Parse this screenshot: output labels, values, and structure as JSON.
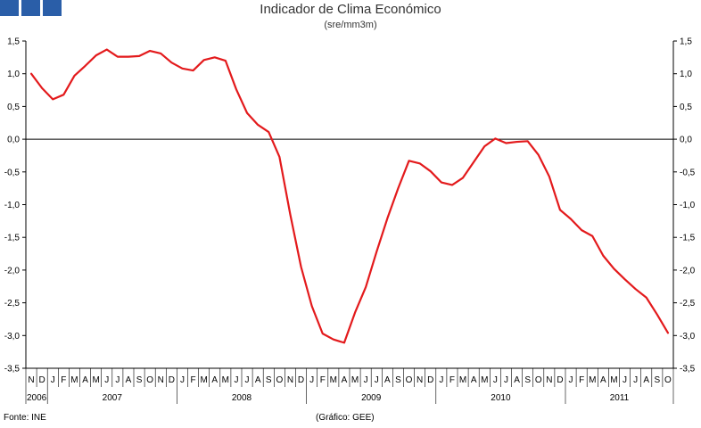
{
  "header": {
    "title": "Indicador de Clima Económico",
    "subtitle": "(sre/mm3m)"
  },
  "footer": {
    "source": "Fonte: INE",
    "credit": "(Gráfico: GEE)"
  },
  "colors": {
    "series": "#e31a1c",
    "logo": "#2a5ea8"
  },
  "chart_data": {
    "type": "line",
    "ylim": [
      -3.5,
      1.5
    ],
    "yticks": [
      1.5,
      1.0,
      0.5,
      0.0,
      -0.5,
      -1.0,
      -1.5,
      -2.0,
      -2.5,
      -3.0,
      -3.5
    ],
    "ytick_labels": [
      "1,5",
      "1,0",
      "0,5",
      "0,0",
      "-0,5",
      "-1,0",
      "-1,5",
      "-2,0",
      "-2,5",
      "-3,0",
      "-3,5"
    ],
    "grid": false,
    "categories": [
      "N",
      "D",
      "J",
      "F",
      "M",
      "A",
      "M",
      "J",
      "J",
      "A",
      "S",
      "O",
      "N",
      "D",
      "J",
      "F",
      "M",
      "A",
      "M",
      "J",
      "J",
      "A",
      "S",
      "O",
      "N",
      "D",
      "J",
      "F",
      "M",
      "A",
      "M",
      "J",
      "J",
      "A",
      "S",
      "O",
      "N",
      "D",
      "J",
      "F",
      "M",
      "A",
      "M",
      "J",
      "J",
      "A",
      "S",
      "O",
      "N",
      "D",
      "J",
      "F",
      "M",
      "A",
      "M",
      "J",
      "J",
      "A",
      "S",
      "O"
    ],
    "years": [
      {
        "label": "2006",
        "start": 0,
        "count": 2
      },
      {
        "label": "2007",
        "start": 2,
        "count": 12
      },
      {
        "label": "2008",
        "start": 14,
        "count": 12
      },
      {
        "label": "2009",
        "start": 26,
        "count": 12
      },
      {
        "label": "2010",
        "start": 38,
        "count": 12
      },
      {
        "label": "2011",
        "start": 50,
        "count": 10
      }
    ],
    "series": [
      {
        "values": [
          1.0,
          0.78,
          0.61,
          0.68,
          0.97,
          1.12,
          1.28,
          1.37,
          1.26,
          1.26,
          1.27,
          1.35,
          1.31,
          1.17,
          1.08,
          1.05,
          1.21,
          1.25,
          1.2,
          0.76,
          0.4,
          0.22,
          0.11,
          -0.27,
          -1.15,
          -1.95,
          -2.55,
          -2.97,
          -3.06,
          -3.11,
          -2.65,
          -2.26,
          -1.72,
          -1.21,
          -0.75,
          -0.33,
          -0.37,
          -0.49,
          -0.66,
          -0.7,
          -0.59,
          -0.35,
          -0.11,
          0.01,
          -0.06,
          -0.04,
          -0.03,
          -0.24,
          -0.57,
          -1.08,
          -1.22,
          -1.39,
          -1.48,
          -1.78,
          -1.98,
          -2.14,
          -2.29,
          -2.42,
          -2.68,
          -2.96
        ]
      }
    ]
  }
}
